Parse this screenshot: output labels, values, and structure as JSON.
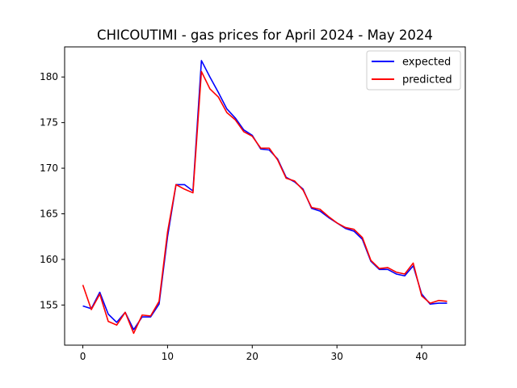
{
  "chart_data": {
    "type": "line",
    "title": "CHICOUTIMI - gas prices for April 2024 - May 2024",
    "xlabel": "",
    "ylabel": "",
    "xlim": [
      -2.15,
      45.15
    ],
    "ylim": [
      150.6,
      183.3
    ],
    "xticks": [
      0,
      10,
      20,
      30,
      40
    ],
    "yticks": [
      155,
      160,
      165,
      170,
      175,
      180
    ],
    "grid": false,
    "legend_position": "upper right",
    "x": [
      0,
      1,
      2,
      3,
      4,
      5,
      6,
      7,
      8,
      9,
      10,
      11,
      12,
      13,
      14,
      15,
      16,
      17,
      18,
      19,
      20,
      21,
      22,
      23,
      24,
      25,
      26,
      27,
      28,
      29,
      30,
      31,
      32,
      33,
      34,
      35,
      36,
      37,
      38,
      39,
      40,
      41,
      42,
      43
    ],
    "series": [
      {
        "name": "expected",
        "color": "#0000ff",
        "values": [
          154.9,
          154.6,
          156.4,
          154.0,
          153.1,
          154.2,
          152.3,
          153.7,
          153.7,
          155.1,
          162.5,
          168.2,
          168.2,
          167.5,
          181.8,
          180.0,
          178.3,
          176.5,
          175.5,
          174.2,
          173.6,
          172.1,
          172.0,
          171.0,
          169.0,
          168.5,
          167.7,
          165.6,
          165.3,
          164.6,
          164.0,
          163.4,
          163.1,
          162.2,
          159.8,
          158.9,
          158.9,
          158.4,
          158.2,
          159.3,
          156.2,
          155.1,
          155.2,
          155.2
        ]
      },
      {
        "name": "predicted",
        "color": "#ff0000",
        "values": [
          157.2,
          154.5,
          156.2,
          153.2,
          152.8,
          154.2,
          151.9,
          153.9,
          153.8,
          155.4,
          163.0,
          168.2,
          167.7,
          167.3,
          180.6,
          178.7,
          177.8,
          176.1,
          175.3,
          174.0,
          173.5,
          172.2,
          172.2,
          170.9,
          168.9,
          168.6,
          167.6,
          165.7,
          165.5,
          164.7,
          164.0,
          163.5,
          163.3,
          162.4,
          159.9,
          159.0,
          159.1,
          158.6,
          158.4,
          159.6,
          156.0,
          155.2,
          155.5,
          155.4
        ]
      }
    ]
  }
}
